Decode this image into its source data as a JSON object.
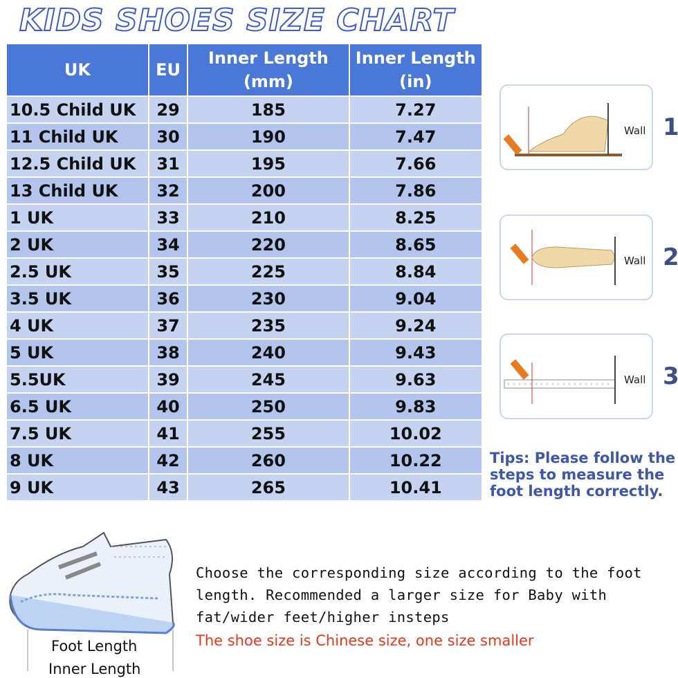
{
  "title": "KIDS SHOES SIZE CHART",
  "table": {
    "header": [
      [
        "UK"
      ],
      [
        "EU"
      ],
      [
        "Inner Length",
        "(mm)"
      ],
      [
        "Inner Length",
        "(in)"
      ]
    ],
    "rows": [
      [
        "10.5 Child UK",
        "29",
        "185",
        "7.27"
      ],
      [
        "11 Child UK",
        "30",
        "190",
        "7.47"
      ],
      [
        "12.5 Child UK",
        "31",
        "195",
        "7.66"
      ],
      [
        "13 Child UK",
        "32",
        "200",
        "7.86"
      ],
      [
        "1 UK",
        "33",
        "210",
        "8.25"
      ],
      [
        "2 UK",
        "34",
        "220",
        "8.65"
      ],
      [
        "2.5 UK",
        "35",
        "225",
        "8.84"
      ],
      [
        "3.5 UK",
        "36",
        "230",
        "9.04"
      ],
      [
        "4 UK",
        "37",
        "235",
        "9.24"
      ],
      [
        "5 UK",
        "38",
        "240",
        "9.43"
      ],
      [
        "5.5UK",
        "39",
        "245",
        "9.63"
      ],
      [
        "6.5 UK",
        "40",
        "250",
        "9.83"
      ],
      [
        "7.5 UK",
        "41",
        "255",
        "10.02"
      ],
      [
        "8 UK",
        "42",
        "260",
        "10.22"
      ],
      [
        "9 UK",
        "43",
        "265",
        "10.41"
      ]
    ]
  },
  "steps": [
    {
      "label": "Wall",
      "number": "1"
    },
    {
      "label": "Wall",
      "number": "2"
    },
    {
      "label": "Wall",
      "number": "3"
    }
  ],
  "tips": [
    "Tips: Please follow the",
    "steps to measure the",
    "foot length correctly."
  ],
  "description": [
    "Choose the corresponding size according to the foot",
    "length. Recommended a larger size for Baby with",
    "fat/wider feet/higher insteps"
  ],
  "note": "The shoe size is Chinese size, one size smaller",
  "shoe_labels": [
    "Foot Length",
    "Inner Length"
  ]
}
